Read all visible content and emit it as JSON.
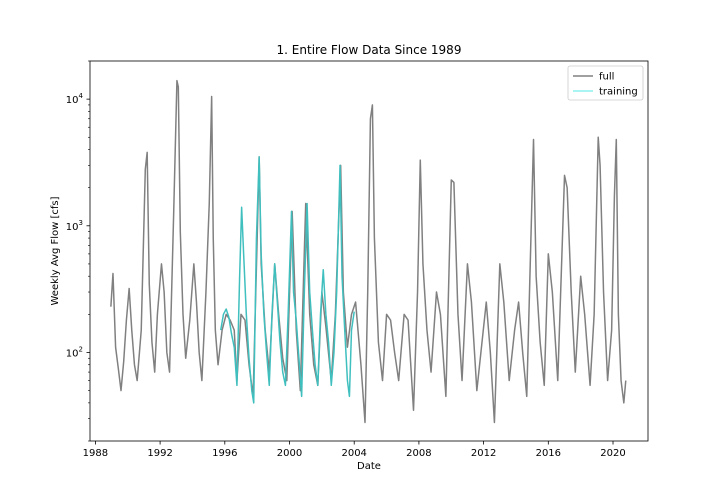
{
  "chart_data": {
    "type": "line",
    "title": "1. Entire Flow Data Since 1989",
    "xlabel": "Date",
    "ylabel": "Weekly Avg Flow [cfs]",
    "x_scale": "time",
    "y_scale": "log",
    "xlim": [
      "1987-09-01",
      "2022-03-01"
    ],
    "ylim": [
      20,
      20000
    ],
    "x_ticks": [
      "1988",
      "1992",
      "1996",
      "2000",
      "2004",
      "2008",
      "2012",
      "2016",
      "2020"
    ],
    "y_ticks": [
      100,
      1000,
      10000
    ],
    "y_tick_labels": [
      {
        "base": "10",
        "exp": "2"
      },
      {
        "base": "10",
        "exp": "3"
      },
      {
        "base": "10",
        "exp": "4"
      }
    ],
    "grid": false,
    "legend_position": "top-right",
    "series": [
      {
        "name": "full",
        "color": "#808080",
        "points": [
          [
            "1988-12-15",
            230
          ],
          [
            "1989-02-01",
            420
          ],
          [
            "1989-04-01",
            110
          ],
          [
            "1989-06-01",
            75
          ],
          [
            "1989-08-01",
            50
          ],
          [
            "1989-10-01",
            85
          ],
          [
            "1989-12-01",
            180
          ],
          [
            "1990-02-01",
            320
          ],
          [
            "1990-04-01",
            150
          ],
          [
            "1990-06-01",
            80
          ],
          [
            "1990-08-01",
            60
          ],
          [
            "1990-11-01",
            150
          ],
          [
            "1991-02-01",
            2800
          ],
          [
            "1991-03-15",
            3800
          ],
          [
            "1991-05-01",
            350
          ],
          [
            "1991-07-01",
            120
          ],
          [
            "1991-09-01",
            70
          ],
          [
            "1991-11-01",
            200
          ],
          [
            "1992-02-01",
            500
          ],
          [
            "1992-04-01",
            300
          ],
          [
            "1992-06-01",
            100
          ],
          [
            "1992-08-01",
            70
          ],
          [
            "1992-11-01",
            1200
          ],
          [
            "1993-01-15",
            14000
          ],
          [
            "1993-02-15",
            12500
          ],
          [
            "1993-04-01",
            900
          ],
          [
            "1993-06-01",
            200
          ],
          [
            "1993-08-01",
            90
          ],
          [
            "1993-11-01",
            180
          ],
          [
            "1994-02-01",
            500
          ],
          [
            "1994-04-01",
            250
          ],
          [
            "1994-06-01",
            100
          ],
          [
            "1994-08-01",
            60
          ],
          [
            "1994-11-01",
            300
          ],
          [
            "1995-01-15",
            1500
          ],
          [
            "1995-03-10",
            10500
          ],
          [
            "1995-04-15",
            800
          ],
          [
            "1995-06-01",
            150
          ],
          [
            "1995-08-01",
            80
          ],
          [
            "1995-11-01",
            150
          ],
          [
            "1996-02-01",
            200
          ],
          [
            "1996-05-01",
            180
          ],
          [
            "1996-08-01",
            150
          ],
          [
            "1996-10-01",
            60
          ],
          [
            "1997-01-01",
            200
          ],
          [
            "1997-04-01",
            180
          ],
          [
            "1997-07-01",
            80
          ],
          [
            "1997-10-01",
            45
          ],
          [
            "1998-01-01",
            800
          ],
          [
            "1998-02-15",
            3500
          ],
          [
            "1998-04-01",
            500
          ],
          [
            "1998-07-01",
            150
          ],
          [
            "1998-10-01",
            70
          ],
          [
            "1999-02-01",
            500
          ],
          [
            "1999-05-01",
            200
          ],
          [
            "1999-08-01",
            90
          ],
          [
            "1999-11-01",
            60
          ],
          [
            "2000-03-01",
            1300
          ],
          [
            "2000-06-01",
            150
          ],
          [
            "2000-09-01",
            50
          ],
          [
            "2001-01-01",
            1500
          ],
          [
            "2001-04-01",
            200
          ],
          [
            "2001-07-01",
            80
          ],
          [
            "2001-10-01",
            55
          ],
          [
            "2002-01-01",
            300
          ],
          [
            "2002-04-01",
            160
          ],
          [
            "2002-08-01",
            60
          ],
          [
            "2002-11-01",
            200
          ],
          [
            "2003-03-01",
            3000
          ],
          [
            "2003-05-01",
            300
          ],
          [
            "2003-08-01",
            110
          ],
          [
            "2003-11-01",
            200
          ],
          [
            "2004-02-01",
            250
          ],
          [
            "2004-06-01",
            80
          ],
          [
            "2004-09-01",
            28
          ],
          [
            "2004-11-01",
            300
          ],
          [
            "2005-01-01",
            7000
          ],
          [
            "2005-02-15",
            9000
          ],
          [
            "2005-04-01",
            800
          ],
          [
            "2005-07-01",
            120
          ],
          [
            "2005-10-01",
            60
          ],
          [
            "2006-01-01",
            200
          ],
          [
            "2006-04-01",
            180
          ],
          [
            "2006-07-01",
            100
          ],
          [
            "2006-10-01",
            60
          ],
          [
            "2007-02-01",
            200
          ],
          [
            "2007-05-01",
            180
          ],
          [
            "2007-09-01",
            35
          ],
          [
            "2007-12-01",
            300
          ],
          [
            "2008-02-01",
            3300
          ],
          [
            "2008-04-01",
            500
          ],
          [
            "2008-07-01",
            150
          ],
          [
            "2008-10-01",
            70
          ],
          [
            "2009-02-01",
            300
          ],
          [
            "2009-05-01",
            200
          ],
          [
            "2009-09-01",
            45
          ],
          [
            "2010-01-01",
            2300
          ],
          [
            "2010-03-01",
            2200
          ],
          [
            "2010-06-01",
            200
          ],
          [
            "2010-09-01",
            60
          ],
          [
            "2011-01-01",
            500
          ],
          [
            "2011-04-01",
            250
          ],
          [
            "2011-08-01",
            50
          ],
          [
            "2011-11-01",
            100
          ],
          [
            "2012-03-01",
            250
          ],
          [
            "2012-06-01",
            100
          ],
          [
            "2012-09-01",
            28
          ],
          [
            "2013-01-01",
            500
          ],
          [
            "2013-04-01",
            250
          ],
          [
            "2013-08-01",
            60
          ],
          [
            "2013-12-01",
            150
          ],
          [
            "2014-03-01",
            250
          ],
          [
            "2014-06-01",
            100
          ],
          [
            "2014-09-01",
            45
          ],
          [
            "2015-02-01",
            4800
          ],
          [
            "2015-04-01",
            400
          ],
          [
            "2015-07-01",
            120
          ],
          [
            "2015-10-01",
            55
          ],
          [
            "2016-01-01",
            600
          ],
          [
            "2016-04-01",
            300
          ],
          [
            "2016-08-01",
            60
          ],
          [
            "2017-01-01",
            2500
          ],
          [
            "2017-03-01",
            2000
          ],
          [
            "2017-06-01",
            300
          ],
          [
            "2017-09-01",
            70
          ],
          [
            "2018-01-01",
            400
          ],
          [
            "2018-04-01",
            200
          ],
          [
            "2018-08-01",
            55
          ],
          [
            "2018-11-01",
            200
          ],
          [
            "2019-02-01",
            5000
          ],
          [
            "2019-03-15",
            3000
          ],
          [
            "2019-06-01",
            300
          ],
          [
            "2019-09-01",
            60
          ],
          [
            "2019-12-01",
            150
          ],
          [
            "2020-02-01",
            1700
          ],
          [
            "2020-03-15",
            4800
          ],
          [
            "2020-05-01",
            200
          ],
          [
            "2020-07-01",
            60
          ],
          [
            "2020-09-01",
            40
          ],
          [
            "2020-10-15",
            60
          ]
        ]
      },
      {
        "name": "training",
        "color": "#40bfbf",
        "points": [
          [
            "1995-10-01",
            150
          ],
          [
            "1995-12-01",
            200
          ],
          [
            "1996-02-01",
            220
          ],
          [
            "1996-04-01",
            190
          ],
          [
            "1996-06-01",
            140
          ],
          [
            "1996-08-01",
            110
          ],
          [
            "1996-10-01",
            55
          ],
          [
            "1996-12-01",
            400
          ],
          [
            "1997-01-15",
            1400
          ],
          [
            "1997-03-01",
            600
          ],
          [
            "1997-05-01",
            200
          ],
          [
            "1997-07-01",
            90
          ],
          [
            "1997-09-01",
            50
          ],
          [
            "1997-10-15",
            40
          ],
          [
            "1997-12-15",
            800
          ],
          [
            "1998-02-15",
            3500
          ],
          [
            "1998-04-01",
            600
          ],
          [
            "1998-06-01",
            200
          ],
          [
            "1998-08-01",
            100
          ],
          [
            "1998-10-01",
            55
          ],
          [
            "1998-12-01",
            200
          ],
          [
            "1999-02-01",
            500
          ],
          [
            "1999-04-01",
            250
          ],
          [
            "1999-06-01",
            120
          ],
          [
            "1999-08-01",
            70
          ],
          [
            "1999-10-01",
            55
          ],
          [
            "1999-12-01",
            200
          ],
          [
            "2000-02-15",
            1300
          ],
          [
            "2000-04-01",
            300
          ],
          [
            "2000-06-01",
            180
          ],
          [
            "2000-08-01",
            90
          ],
          [
            "2000-10-01",
            45
          ],
          [
            "2000-12-01",
            300
          ],
          [
            "2001-02-01",
            1500
          ],
          [
            "2001-04-01",
            300
          ],
          [
            "2001-06-01",
            150
          ],
          [
            "2001-08-01",
            80
          ],
          [
            "2001-10-01",
            55
          ],
          [
            "2001-12-01",
            200
          ],
          [
            "2002-02-01",
            450
          ],
          [
            "2002-04-01",
            200
          ],
          [
            "2002-06-01",
            120
          ],
          [
            "2002-08-01",
            55
          ],
          [
            "2002-10-01",
            100
          ],
          [
            "2002-12-01",
            300
          ],
          [
            "2003-02-15",
            3000
          ],
          [
            "2003-04-01",
            400
          ],
          [
            "2003-06-01",
            150
          ],
          [
            "2003-08-01",
            60
          ],
          [
            "2003-09-15",
            45
          ],
          [
            "2003-11-01",
            150
          ],
          [
            "2004-01-01",
            210
          ]
        ]
      }
    ]
  }
}
